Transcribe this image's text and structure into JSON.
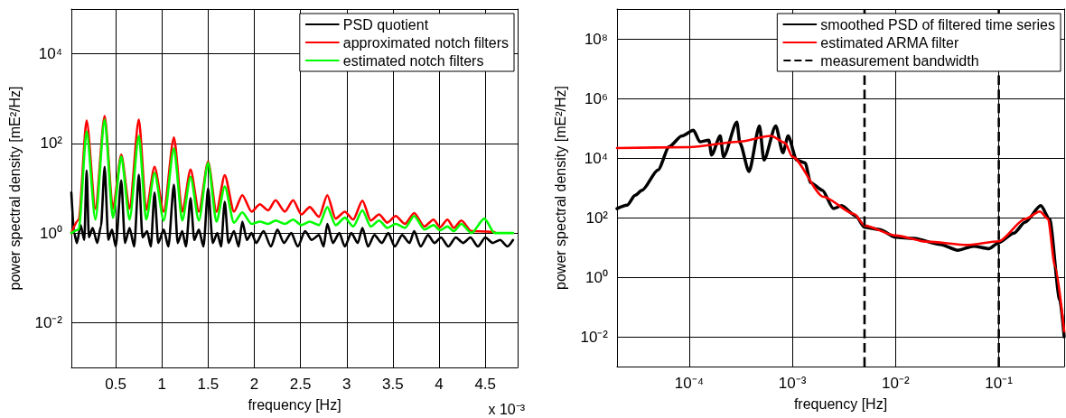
{
  "chart_data": [
    {
      "type": "line",
      "xlabel": "frequency [Hz]",
      "ylabel": "power spectral density [mE²/Hz]",
      "log": "y",
      "grid": true,
      "legend": "top right",
      "xlim": [
        0.02,
        4.85
      ],
      "xticks": [
        0.5,
        1,
        1.5,
        2,
        2.5,
        3,
        3.5,
        4,
        4.5
      ],
      "ylim": [
        0.001,
        100000
      ],
      "yticks": [
        {
          "value": 0.01,
          "label": "10⁻²"
        },
        {
          "value": 1,
          "label": "10⁰"
        },
        {
          "value": 100,
          "label": "10²"
        },
        {
          "value": 10000,
          "label": "10⁴"
        }
      ],
      "annotations": [
        "x 10⁻³"
      ],
      "series": [
        {
          "name": "PSD quotient",
          "color": "#000000",
          "x": [
            0.02,
            0.05,
            0.08,
            0.12,
            0.16,
            0.185,
            0.21,
            0.25,
            0.3,
            0.34,
            0.38,
            0.42,
            0.46,
            0.5,
            0.56,
            0.6,
            0.65,
            0.7,
            0.75,
            0.79,
            0.84,
            0.88,
            0.92,
            0.96,
            1.02,
            1.07,
            1.13,
            1.17,
            1.22,
            1.26,
            1.31,
            1.35,
            1.4,
            1.45,
            1.5,
            1.55,
            1.6,
            1.64,
            1.68,
            1.72,
            1.78,
            1.83,
            1.87,
            1.92,
            1.97,
            2.02,
            2.1,
            2.18,
            2.25,
            2.32,
            2.4,
            2.47,
            2.55,
            2.62,
            2.7,
            2.75,
            2.79,
            2.85,
            2.92,
            2.98,
            3.05,
            3.12,
            3.17,
            3.23,
            3.3,
            3.38,
            3.45,
            3.52,
            3.6,
            3.68,
            3.73,
            3.8,
            3.88,
            3.95,
            4.02,
            4.1,
            4.18,
            4.26,
            4.34,
            4.42,
            4.5,
            4.58,
            4.66,
            4.74,
            4.8
          ],
          "values": [
            8,
            1.0,
            0.6,
            1.5,
            0.7,
            25,
            0.8,
            1.3,
            0.6,
            1.4,
            30,
            0.7,
            1.2,
            0.5,
            15,
            0.6,
            1.3,
            0.5,
            20,
            0.8,
            1.1,
            0.5,
            8,
            0.6,
            1.2,
            0.5,
            12,
            0.6,
            1.1,
            0.5,
            6,
            0.7,
            1.2,
            0.5,
            10,
            0.6,
            1.0,
            0.5,
            5,
            0.6,
            1.1,
            0.5,
            1.8,
            0.7,
            1.0,
            0.6,
            1.1,
            0.5,
            1.2,
            0.6,
            1.0,
            0.5,
            1.1,
            0.7,
            0.9,
            0.5,
            1.6,
            0.6,
            1.0,
            0.5,
            1.0,
            0.6,
            1.3,
            0.5,
            0.9,
            0.6,
            1.0,
            0.5,
            0.9,
            0.6,
            1.1,
            0.5,
            0.9,
            0.6,
            0.8,
            0.5,
            0.8,
            0.6,
            0.8,
            0.5,
            0.8,
            0.6,
            0.7,
            0.5,
            0.7
          ]
        },
        {
          "name": "approximated notch filters",
          "color": "#ff0000",
          "x": [
            0.02,
            0.1,
            0.185,
            0.28,
            0.38,
            0.47,
            0.56,
            0.65,
            0.75,
            0.83,
            0.92,
            1.02,
            1.13,
            1.22,
            1.31,
            1.4,
            1.5,
            1.59,
            1.68,
            1.78,
            1.87,
            1.97,
            2.06,
            2.15,
            2.23,
            2.33,
            2.42,
            2.51,
            2.6,
            2.7,
            2.79,
            2.88,
            2.98,
            3.07,
            3.17,
            3.26,
            3.35,
            3.44,
            3.53,
            3.63,
            3.73,
            3.84,
            3.94,
            4.01,
            4.09,
            4.16,
            4.24,
            4.35,
            4.49,
            4.6
          ],
          "values": [
            1.0,
            2.0,
            325,
            3.5,
            410,
            3.5,
            56,
            3.5,
            340,
            3.3,
            30,
            3.0,
            135,
            3.0,
            26,
            3.0,
            39,
            3.0,
            19.5,
            3.0,
            7,
            3.0,
            4.4,
            3.2,
            5.4,
            3.0,
            5.4,
            2.6,
            3.8,
            2.3,
            7,
            2.1,
            3,
            2.0,
            5.3,
            1.9,
            2.6,
            1.7,
            2.4,
            1.6,
            2.8,
            1.4,
            2.0,
            1.35,
            2.0,
            1.3,
            1.9,
            1.1,
            null,
            1.05
          ]
        },
        {
          "name": "estimated notch filters",
          "color": "#00ff00",
          "x": [
            0.02,
            0.1,
            0.185,
            0.28,
            0.38,
            0.47,
            0.56,
            0.65,
            0.75,
            0.83,
            0.92,
            1.02,
            1.13,
            1.22,
            1.31,
            1.4,
            1.5,
            1.59,
            1.68,
            1.78,
            1.87,
            1.97,
            2.06,
            2.15,
            2.23,
            2.33,
            2.42,
            2.51,
            2.6,
            2.7,
            2.79,
            2.88,
            2.98,
            3.07,
            3.17,
            3.26,
            3.35,
            3.44,
            3.53,
            3.63,
            3.73,
            3.84,
            3.94,
            4.01,
            4.09,
            4.16,
            4.24,
            4.35,
            4.49,
            4.6,
            4.8
          ],
          "values": [
            1.0,
            1.2,
            185,
            2.0,
            340,
            2.2,
            51,
            2.0,
            148,
            2.0,
            22,
            1.9,
            78,
            1.9,
            18,
            1.9,
            37,
            1.8,
            11,
            1.7,
            2.9,
            1.6,
            1.8,
            1.6,
            1.9,
            1.6,
            2.0,
            1.5,
            1.8,
            1.5,
            3.8,
            1.5,
            2.2,
            1.4,
            3.2,
            1.4,
            1.9,
            1.3,
            1.6,
            1.3,
            2.4,
            1.2,
            1.5,
            1.15,
            1.4,
            1.1,
            1.6,
            1.0,
            2.1,
            1.0,
            1.0
          ]
        }
      ]
    },
    {
      "type": "line",
      "xlabel": "frequency [Hz]",
      "ylabel": "power spectral density [mE²/Hz]",
      "log": "xy",
      "grid": true,
      "legend": "top right",
      "xlim": [
        2e-05,
        0.43
      ],
      "xticks": [
        {
          "value": 0.0001,
          "label": "10⁻⁴"
        },
        {
          "value": 0.001,
          "label": "10⁻³"
        },
        {
          "value": 0.01,
          "label": "10⁻²"
        },
        {
          "value": 0.1,
          "label": "10⁻¹"
        }
      ],
      "ylim": [
        0.001,
        1000000000
      ],
      "yticks": [
        {
          "value": 0.01,
          "label": "10⁻²"
        },
        {
          "value": 1,
          "label": "10⁰"
        },
        {
          "value": 100,
          "label": "10²"
        },
        {
          "value": 10000,
          "label": "10⁴"
        },
        {
          "value": 1000000,
          "label": "10⁶"
        },
        {
          "value": 100000000,
          "label": "10⁸"
        }
      ],
      "ref_lines": [
        {
          "axis": "x",
          "value": 0.005,
          "label": "measurement bandwidth",
          "color": "#000000",
          "line_style": "dashed"
        },
        {
          "axis": "x",
          "value": 0.1,
          "color": "#000000",
          "line_style": "dashed"
        }
      ],
      "series": [
        {
          "name": "smoothed PSD of filtered time series",
          "color": "#000000",
          "x": [
            2e-05,
            2.5e-05,
            3e-05,
            3.5e-05,
            5e-05,
            6.4e-05,
            8.5e-05,
            0.00011,
            0.000127,
            0.000155,
            0.000165,
            0.0002,
            0.000215,
            0.00029,
            0.00031,
            0.00038,
            0.00048,
            0.00053,
            0.00069,
            0.00081,
            0.00091,
            0.0011,
            0.00133,
            0.0015,
            0.00195,
            0.0025,
            0.003,
            0.0041,
            0.005,
            0.007,
            0.01,
            0.015,
            0.027,
            0.04,
            0.057,
            0.08,
            0.1,
            0.14,
            0.18,
            0.255,
            0.31,
            0.39,
            0.43
          ],
          "values": [
            200,
            260,
            560,
            830,
            4000,
            24000,
            55000,
            85000,
            35000,
            40000,
            12600,
            55000,
            11000,
            160000,
            32000,
            3500,
            120000,
            8500,
            120000,
            15000,
            55000,
            8500,
            6800,
            1500,
            830,
            200,
            250,
            115,
            47,
            40,
            22,
            20,
            12.6,
            8,
            11,
            9,
            14.5,
            30,
            70,
            250,
            90,
            0.17,
            0.01
          ]
        },
        {
          "name": "estimated ARMA filter",
          "color": "#ff0000",
          "x": [
            2e-05,
            0.0001,
            0.0003,
            0.00062,
            0.00085,
            0.001,
            0.002,
            0.004,
            0.005,
            0.01,
            0.02,
            0.05,
            0.1,
            0.18,
            0.25,
            0.3,
            0.35,
            0.43
          ],
          "values": [
            21500,
            23000,
            35000,
            55000,
            32000,
            11000,
            500,
            130,
            54,
            25,
            15.6,
            12,
            16,
            90,
            160,
            90,
            2.3,
            0.015
          ]
        }
      ]
    }
  ]
}
